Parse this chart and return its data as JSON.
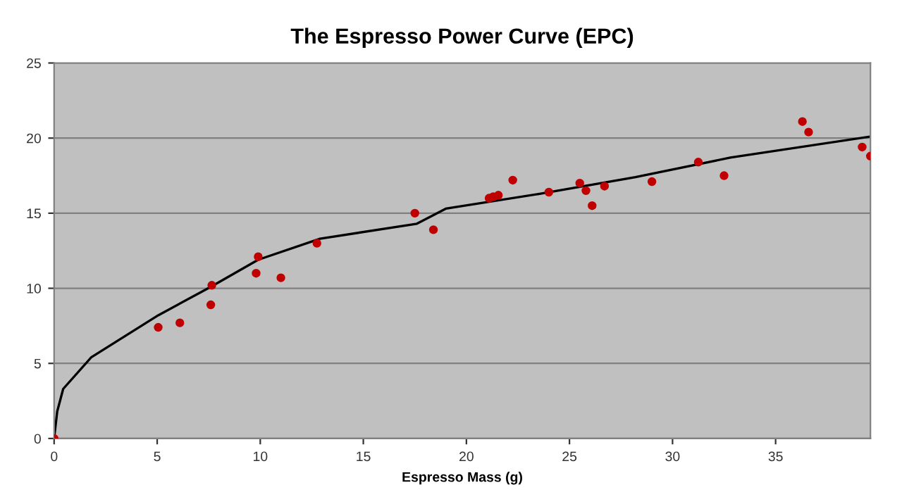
{
  "chart_data": {
    "type": "scatter",
    "title": "The Espresso Power Curve (EPC)",
    "xlabel": "Espresso Mass (g)",
    "xlim": [
      0,
      39.6
    ],
    "xticks": [
      0,
      5,
      10,
      15,
      20,
      25,
      30,
      35
    ],
    "ylim": [
      0,
      25
    ],
    "yticks": [
      0,
      5,
      10,
      15,
      20,
      25
    ],
    "grid": "y",
    "marker": "circle",
    "series": [
      {
        "color": "#c00000",
        "x": [
          0,
          5.05,
          6.1,
          7.6,
          7.65,
          9.8,
          9.9,
          11.0,
          12.75,
          17.5,
          18.4,
          21.1,
          21.3,
          21.55,
          22.25,
          24.0,
          25.5,
          25.8,
          26.1,
          26.7,
          29.0,
          31.25,
          32.5,
          36.3,
          36.6,
          39.2,
          39.6
        ],
        "values": [
          0,
          7.4,
          7.7,
          8.9,
          10.2,
          11.0,
          12.1,
          10.7,
          13.0,
          15.0,
          13.9,
          16.0,
          16.1,
          16.2,
          17.2,
          16.4,
          17.0,
          16.5,
          15.5,
          16.8,
          17.1,
          18.4,
          17.5,
          21.1,
          20.4,
          19.4,
          18.8
        ]
      },
      {
        "type": "line",
        "color": "#000000",
        "marker": "none",
        "x": [
          0,
          0.15,
          0.44,
          1.8,
          5.05,
          7.6,
          9.9,
          12.9,
          17.6,
          19.0,
          23.6,
          28.2,
          32.8,
          39.6
        ],
        "values": [
          0,
          1.8,
          3.3,
          5.4,
          8.2,
          10.1,
          11.9,
          13.3,
          14.3,
          15.3,
          16.3,
          17.4,
          18.7,
          20.1
        ]
      }
    ]
  }
}
